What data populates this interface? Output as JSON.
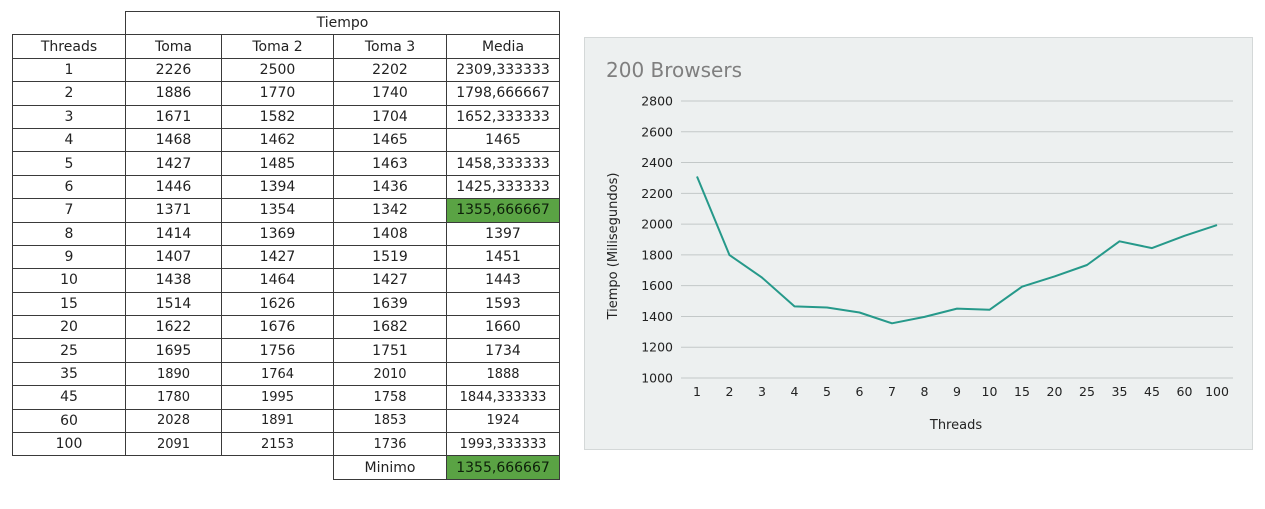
{
  "table": {
    "group_header": "Tiempo",
    "headers": [
      "Threads",
      "Toma",
      "Toma 2",
      "Toma 3",
      "Media"
    ],
    "rows": [
      [
        "1",
        "2226",
        "2500",
        "2202",
        "2309,333333"
      ],
      [
        "2",
        "1886",
        "1770",
        "1740",
        "1798,666667"
      ],
      [
        "3",
        "1671",
        "1582",
        "1704",
        "1652,333333"
      ],
      [
        "4",
        "1468",
        "1462",
        "1465",
        "1465"
      ],
      [
        "5",
        "1427",
        "1485",
        "1463",
        "1458,333333"
      ],
      [
        "6",
        "1446",
        "1394",
        "1436",
        "1425,333333"
      ],
      [
        "7",
        "1371",
        "1354",
        "1342",
        "1355,666667"
      ],
      [
        "8",
        "1414",
        "1369",
        "1408",
        "1397"
      ],
      [
        "9",
        "1407",
        "1427",
        "1519",
        "1451"
      ],
      [
        "10",
        "1438",
        "1464",
        "1427",
        "1443"
      ],
      [
        "15",
        "1514",
        "1626",
        "1639",
        "1593"
      ],
      [
        "20",
        "1622",
        "1676",
        "1682",
        "1660"
      ],
      [
        "25",
        "1695",
        "1756",
        "1751",
        "1734"
      ],
      [
        "35",
        "1890",
        "1764",
        "2010",
        "1888"
      ],
      [
        "45",
        "1780",
        "1995",
        "1758",
        "1844,333333"
      ],
      [
        "60",
        "2028",
        "1891",
        "1853",
        "1924"
      ],
      [
        "100",
        "2091",
        "2153",
        "1736",
        "1993,333333"
      ]
    ],
    "highlight_row_index": 6,
    "minimum_label": "Minimo",
    "minimum_value": "1355,666667",
    "highlight_color": "#5aa344"
  },
  "chart_data": {
    "type": "line",
    "title": "200 Browsers",
    "xlabel": "Threads",
    "ylabel": "Tiempo (Milisegundos)",
    "categories": [
      "1",
      "2",
      "3",
      "4",
      "5",
      "6",
      "7",
      "8",
      "9",
      "10",
      "15",
      "20",
      "25",
      "35",
      "45",
      "60",
      "100"
    ],
    "series": [
      {
        "values": [
          2309.333333,
          1798.666667,
          1652.333333,
          1465,
          1458.333333,
          1425.333333,
          1355.666667,
          1397,
          1451,
          1443,
          1593,
          1660,
          1734,
          1888,
          1844.333333,
          1924,
          1993.333333
        ],
        "color": "#26998a"
      }
    ],
    "ylim": [
      1000,
      2800
    ],
    "yticks": [
      1000,
      1200,
      1400,
      1600,
      1800,
      2000,
      2200,
      2400,
      2600,
      2800
    ],
    "grid": true,
    "legend": "none",
    "background": "#edf0f0"
  }
}
